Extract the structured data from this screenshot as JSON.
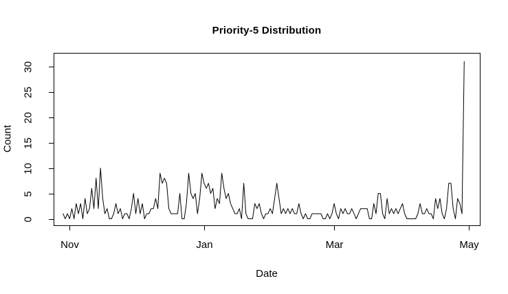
{
  "title": "Priority-5 Distribution",
  "chart_data": {
    "type": "line",
    "title": "Priority-5 Distribution",
    "xlabel": "Date",
    "ylabel": "Count",
    "x_tick_labels": [
      "Nov",
      "Jan",
      "Mar",
      "May"
    ],
    "x_tick_day_offsets": [
      0,
      61,
      120,
      181
    ],
    "y_ticks": [
      0,
      5,
      10,
      15,
      20,
      25,
      30
    ],
    "ylim": [
      0,
      31
    ],
    "xlim_day_offsets": [
      -3,
      179
    ],
    "grid": false,
    "legend": false,
    "line_color": "#000000",
    "axis_color": "#000000",
    "background_color": "#ffffff",
    "x_start_day_offset": -3,
    "values": [
      1,
      0,
      1,
      0,
      2,
      0,
      3,
      1,
      3,
      0,
      4,
      1,
      2,
      6,
      2,
      8,
      2,
      10,
      4,
      1,
      2,
      0,
      0,
      1,
      3,
      1,
      2,
      0,
      1,
      1,
      0,
      2,
      5,
      1,
      4,
      1,
      3,
      0,
      1,
      1,
      2,
      2,
      4,
      2,
      9,
      7,
      8,
      7,
      2,
      1,
      1,
      1,
      1,
      5,
      0,
      0,
      3,
      9,
      5,
      4,
      5,
      1,
      4,
      9,
      7,
      6,
      7,
      5,
      6,
      2,
      4,
      3,
      9,
      6,
      4,
      5,
      3,
      2,
      1,
      1,
      2,
      0,
      7,
      1,
      0,
      0,
      0,
      3,
      2,
      3,
      1,
      0,
      1,
      1,
      2,
      1,
      4,
      7,
      4,
      1,
      2,
      1,
      2,
      1,
      2,
      1,
      1,
      3,
      1,
      0,
      1,
      0,
      0,
      1,
      1,
      1,
      1,
      1,
      0,
      0,
      1,
      0,
      1,
      3,
      1,
      0,
      2,
      1,
      2,
      1,
      1,
      2,
      1,
      0,
      1,
      2,
      2,
      2,
      2,
      0,
      0,
      3,
      1,
      5,
      5,
      1,
      0,
      4,
      1,
      2,
      1,
      2,
      1,
      2,
      3,
      1,
      0,
      0,
      0,
      0,
      0,
      1,
      3,
      1,
      1,
      2,
      1,
      1,
      0,
      4,
      2,
      4,
      1,
      0,
      2,
      7,
      7,
      2,
      0,
      4,
      3,
      1,
      31
    ]
  }
}
